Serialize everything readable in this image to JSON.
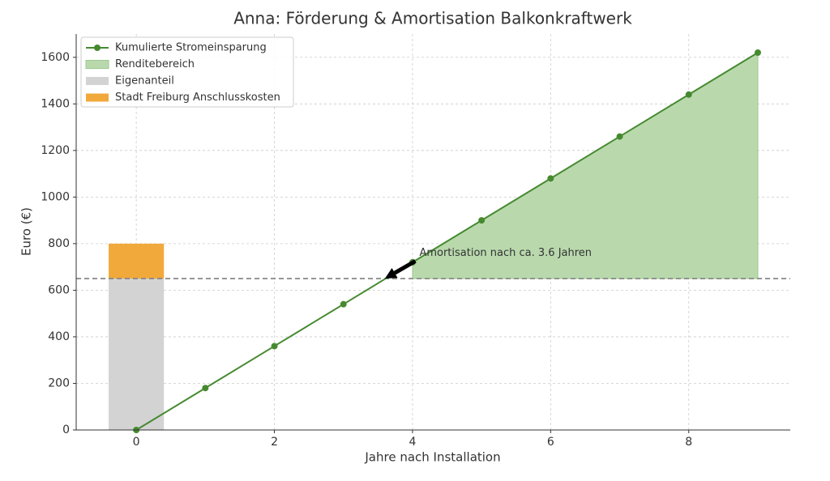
{
  "chart_data": {
    "type": "line",
    "title": "Anna: Förderung & Amortisation Balkonkraftwerk",
    "x_label": "Jahre nach Installation",
    "y_label": "Euro (€)",
    "xlim": [
      -0.87,
      9.47
    ],
    "ylim": [
      0,
      1700
    ],
    "xticks": [
      0,
      2,
      4,
      6,
      8
    ],
    "yticks": [
      0,
      200,
      400,
      600,
      800,
      1000,
      1200,
      1400,
      1600
    ],
    "grid": true,
    "legend": "upper-left",
    "series": [
      {
        "name": "Kumulierte Stromeinsparung",
        "color": "#468a30",
        "x": [
          0,
          1,
          2,
          3,
          4,
          5,
          6,
          7,
          8,
          9
        ],
        "values": [
          0,
          180,
          360,
          540,
          720,
          900,
          1080,
          1260,
          1440,
          1620
        ]
      }
    ],
    "area": {
      "name": "Renditebereich",
      "color": "#b9d9ad",
      "edge": "#9cc98c",
      "x": [
        4,
        5,
        6,
        7,
        8,
        9
      ],
      "values": [
        720,
        900,
        1080,
        1260,
        1440,
        1620
      ],
      "baseline": 650
    },
    "bars": {
      "x": 0,
      "segments": [
        {
          "name": "Eigenanteil",
          "color": "#d3d3d3",
          "value": 650
        },
        {
          "name": "Stadt Freiburg Anschlusskosten",
          "color": "#f2a93b",
          "value": 150
        }
      ]
    },
    "hline": 650,
    "annotation": {
      "text": "Amortisation nach ca. 3.6 Jahren",
      "xy": [
        3.6,
        650
      ],
      "xytext": [
        4.1,
        760
      ]
    }
  }
}
